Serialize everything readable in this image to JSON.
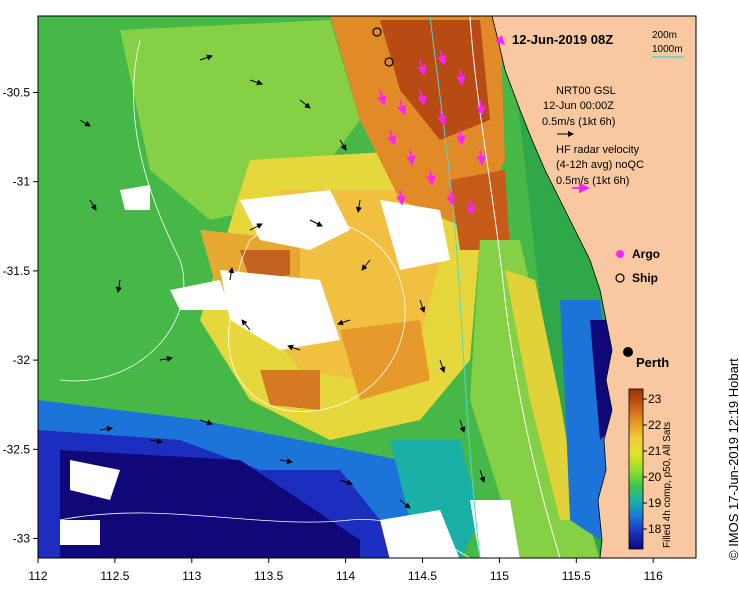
{
  "title": "12-Jun-2019 08Z",
  "bathymetry_legend": [
    {
      "label": "200m",
      "color": "#ffffff"
    },
    {
      "label": "1000m",
      "color": "#4fd8c8"
    }
  ],
  "model_legend": {
    "line1": "NRT00 GSL",
    "line2": "12-Jun 00:00Z",
    "line3": "0.5m/s (1kt 6h)"
  },
  "radar_legend": {
    "line1": "HF radar velocity",
    "line2": "(4-12h avg) noQC",
    "line3": "0.5m/s (1kt 6h)",
    "color": "#ff22ff"
  },
  "markers": [
    {
      "label": "Argo",
      "color": "#ff22ff"
    },
    {
      "label": "Ship",
      "color": "#000000"
    }
  ],
  "place_label": "Perth",
  "colorbar": {
    "ticks": [
      "23",
      "22",
      "21",
      "20",
      "19",
      "18"
    ],
    "caption": "Filled 4h comp, p50, All Sats",
    "colors": [
      "#9a3200",
      "#c65a10",
      "#e29420",
      "#f2c83a",
      "#e2e22c",
      "#9ce02c",
      "#3ec84a",
      "#1ab0a8",
      "#1c74d8",
      "#1c2ec0",
      "#100878"
    ]
  },
  "credit": "© IMOS 17-Jun-2019 12:19 Hobart",
  "axes": {
    "lon_ticks": [
      "112",
      "112.5",
      "113",
      "113.5",
      "114",
      "114.5",
      "115",
      "115.5",
      "116"
    ],
    "lat_ticks": [
      "-30.5",
      "-31",
      "-31.5",
      "-32",
      "-32.5",
      "-33"
    ],
    "lon_range": [
      112,
      116.3
    ],
    "lat_range": [
      -33.1,
      -30.1
    ]
  },
  "colors": {
    "land": "#f8c8a0",
    "gap": "#ffffff",
    "model_arrow": "#000000",
    "radar_arrow": "#ff22ff"
  }
}
